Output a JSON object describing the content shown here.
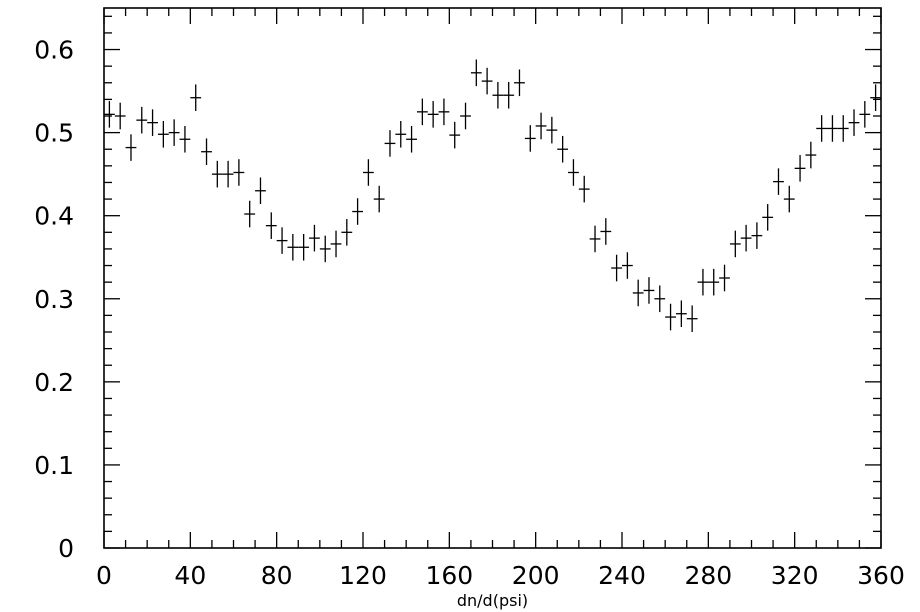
{
  "chart_data": {
    "type": "scatter",
    "title": "",
    "xlabel": "dn/d(psi)",
    "ylabel": "",
    "xlim": [
      0,
      360
    ],
    "ylim": [
      0,
      0.65
    ],
    "grid": false,
    "x_ticks": [
      0,
      40,
      80,
      120,
      160,
      200,
      240,
      280,
      320,
      360
    ],
    "x_tick_labels": [
      "0",
      "40",
      "80",
      "120",
      "160",
      "200",
      "240",
      "280",
      "320",
      "360"
    ],
    "y_ticks": [
      0,
      0.1,
      0.2,
      0.3,
      0.4,
      0.5,
      0.6
    ],
    "y_tick_labels": [
      "0",
      "0.1",
      "0.2",
      "0.3",
      "0.4",
      "0.5",
      "0.6"
    ],
    "x_bin_halfwidth": 2.5,
    "series": [
      {
        "marker": "error-bar cross",
        "color": "#000000",
        "x": [
          2.5,
          7.5,
          12.5,
          17.5,
          22.5,
          27.5,
          32.5,
          37.5,
          42.5,
          47.5,
          52.5,
          57.5,
          62.5,
          67.5,
          72.5,
          77.5,
          82.5,
          87.5,
          92.5,
          97.5,
          102.5,
          107.5,
          112.5,
          117.5,
          122.5,
          127.5,
          132.5,
          137.5,
          142.5,
          147.5,
          152.5,
          157.5,
          162.5,
          167.5,
          172.5,
          177.5,
          182.5,
          187.5,
          192.5,
          197.5,
          202.5,
          207.5,
          212.5,
          217.5,
          222.5,
          227.5,
          232.5,
          237.5,
          242.5,
          247.5,
          252.5,
          257.5,
          262.5,
          267.5,
          272.5,
          277.5,
          282.5,
          287.5,
          292.5,
          297.5,
          302.5,
          307.5,
          312.5,
          317.5,
          322.5,
          327.5,
          332.5,
          337.5,
          342.5,
          347.5,
          352.5,
          357.5
        ],
        "y": [
          0.522,
          0.52,
          0.482,
          0.515,
          0.512,
          0.498,
          0.5,
          0.492,
          0.542,
          0.477,
          0.45,
          0.45,
          0.452,
          0.402,
          0.43,
          0.388,
          0.37,
          0.362,
          0.362,
          0.373,
          0.36,
          0.366,
          0.38,
          0.405,
          0.452,
          0.42,
          0.487,
          0.498,
          0.492,
          0.525,
          0.522,
          0.525,
          0.497,
          0.52,
          0.572,
          0.562,
          0.545,
          0.545,
          0.56,
          0.493,
          0.508,
          0.503,
          0.48,
          0.452,
          0.432,
          0.372,
          0.381,
          0.337,
          0.34,
          0.307,
          0.31,
          0.3,
          0.278,
          0.282,
          0.276,
          0.32,
          0.32,
          0.325,
          0.366,
          0.373,
          0.376,
          0.398,
          0.441,
          0.42,
          0.457,
          0.473,
          0.505,
          0.505,
          0.505,
          0.512,
          0.522,
          0.542
        ],
        "yerr": 0.016
      }
    ]
  }
}
